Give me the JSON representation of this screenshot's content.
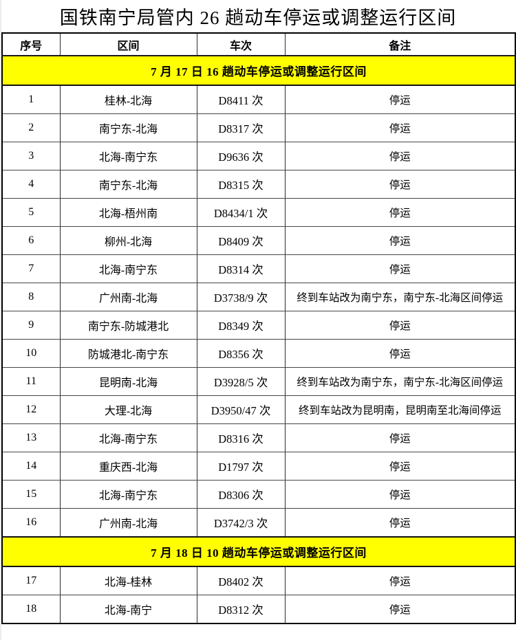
{
  "page": {
    "title": "国铁南宁局管内 26 趟动车停运或调整运行区间"
  },
  "colors": {
    "banner_bg": "#FFFF00",
    "text": "#000000",
    "border": "#000000"
  },
  "table": {
    "columns": [
      "序号",
      "区间",
      "车次",
      "备注"
    ],
    "sections": [
      {
        "banner": "7 月 17 日 16 趟动车停运或调整运行区间",
        "rows": [
          {
            "no": "1",
            "interval": "桂林-北海",
            "train": "D8411 次",
            "remark": "停运"
          },
          {
            "no": "2",
            "interval": "南宁东-北海",
            "train": "D8317 次",
            "remark": "停运"
          },
          {
            "no": "3",
            "interval": "北海-南宁东",
            "train": "D9636 次",
            "remark": "停运"
          },
          {
            "no": "4",
            "interval": "南宁东-北海",
            "train": "D8315 次",
            "remark": "停运"
          },
          {
            "no": "5",
            "interval": "北海-梧州南",
            "train": "D8434/1 次",
            "remark": "停运"
          },
          {
            "no": "6",
            "interval": "柳州-北海",
            "train": "D8409 次",
            "remark": "停运"
          },
          {
            "no": "7",
            "interval": "北海-南宁东",
            "train": "D8314 次",
            "remark": "停运"
          },
          {
            "no": "8",
            "interval": "广州南-北海",
            "train": "D3738/9 次",
            "remark": "终到车站改为南宁东，南宁东-北海区间停运"
          },
          {
            "no": "9",
            "interval": "南宁东-防城港北",
            "train": "D8349 次",
            "remark": "停运"
          },
          {
            "no": "10",
            "interval": "防城港北-南宁东",
            "train": "D8356 次",
            "remark": "停运"
          },
          {
            "no": "11",
            "interval": "昆明南-北海",
            "train": "D3928/5 次",
            "remark": "终到车站改为南宁东，南宁东-北海区间停运"
          },
          {
            "no": "12",
            "interval": "大理-北海",
            "train": "D3950/47 次",
            "remark": "终到车站改为昆明南，昆明南至北海间停运"
          },
          {
            "no": "13",
            "interval": "北海-南宁东",
            "train": "D8316 次",
            "remark": "停运"
          },
          {
            "no": "14",
            "interval": "重庆西-北海",
            "train": "D1797 次",
            "remark": "停运"
          },
          {
            "no": "15",
            "interval": "北海-南宁东",
            "train": "D8306 次",
            "remark": "停运"
          },
          {
            "no": "16",
            "interval": "广州南-北海",
            "train": "D3742/3 次",
            "remark": "停运"
          }
        ]
      },
      {
        "banner": "7 月 18 日 10 趟动车停运或调整运行区间",
        "rows": [
          {
            "no": "17",
            "interval": "北海-桂林",
            "train": "D8402 次",
            "remark": "停运"
          },
          {
            "no": "18",
            "interval": "北海-南宁",
            "train": "D8312 次",
            "remark": "停运"
          }
        ]
      }
    ]
  }
}
